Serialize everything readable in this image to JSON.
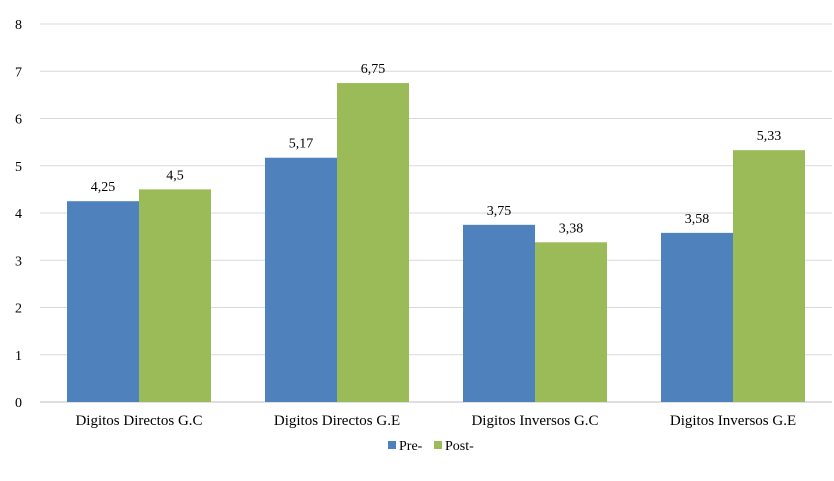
{
  "chart_data": {
    "type": "bar",
    "categories": [
      "Digitos Directos G.C",
      "Digitos Directos G.E",
      "Digitos Inversos G.C",
      "Digitos Inversos G.E"
    ],
    "series": [
      {
        "name": "Pre-",
        "color": "#4f81bd",
        "values": [
          4.25,
          5.17,
          3.75,
          3.58
        ],
        "labels": [
          "4,25",
          "5,17",
          "3,75",
          "3,58"
        ]
      },
      {
        "name": "Post-",
        "color": "#9bbb59",
        "values": [
          4.5,
          6.75,
          3.38,
          5.33
        ],
        "labels": [
          "4,5",
          "6,75",
          "3,38",
          "5,33"
        ]
      }
    ],
    "yticks": [
      "0",
      "1",
      "2",
      "3",
      "4",
      "5",
      "6",
      "7",
      "8"
    ],
    "ylim": [
      0,
      8
    ],
    "grid": true,
    "legend": "bottom",
    "title": "",
    "xlabel": "",
    "ylabel": ""
  }
}
